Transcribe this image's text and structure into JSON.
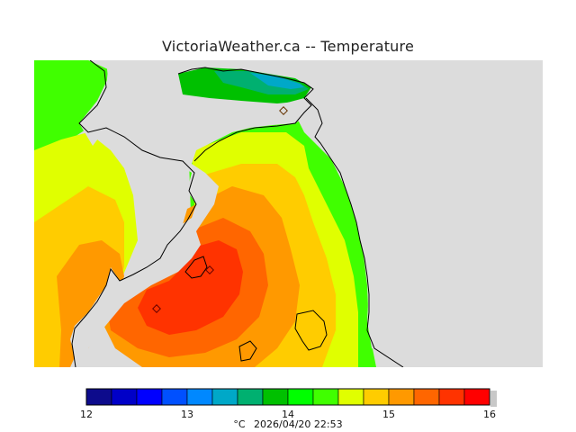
{
  "title": "VictoriaWeather.ca -- Temperature",
  "legend": {
    "min": 12,
    "max": 16,
    "tick_labels": [
      "12",
      "13",
      "14",
      "15",
      "16"
    ],
    "colors": [
      "#0d0b8c",
      "#0000c8",
      "#0000ff",
      "#0050ff",
      "#0088ff",
      "#00a8c8",
      "#00b070",
      "#00c000",
      "#00ff00",
      "#40ff00",
      "#e0ff00",
      "#ffcc00",
      "#ff9900",
      "#ff6600",
      "#ff3300",
      "#ff0000"
    ],
    "unit": "°C",
    "timestamp": "2026/04/20 22:53"
  },
  "map": {
    "land_color": "#dcdcdc",
    "station_color": "#ff4400"
  }
}
